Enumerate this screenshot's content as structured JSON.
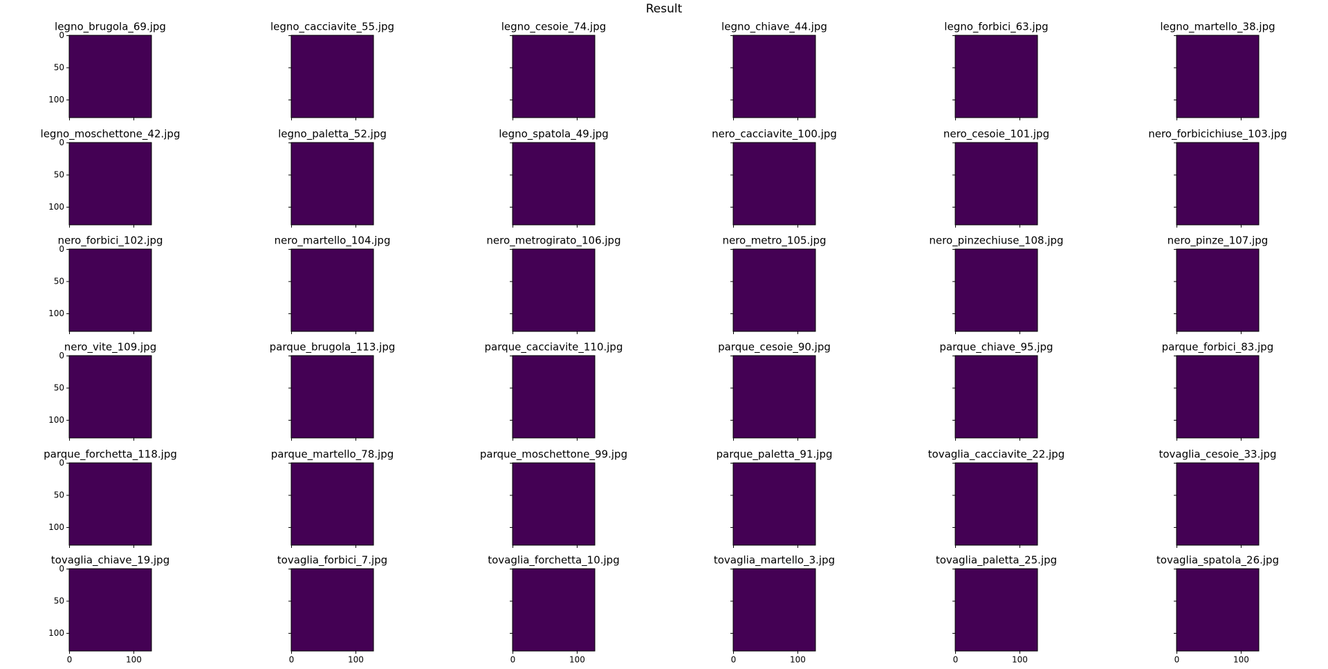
{
  "chart_data": {
    "type": "image",
    "title": "Result",
    "xlim": [
      -0.5,
      127.5
    ],
    "ylim": [
      127.5,
      -0.5
    ],
    "xticks": [
      0,
      100
    ],
    "yticks": [
      0,
      50,
      100
    ],
    "color": "#440154",
    "panels": [
      {
        "title": "legno_brugola_69.jpg"
      },
      {
        "title": "legno_cacciavite_55.jpg"
      },
      {
        "title": "legno_cesoie_74.jpg"
      },
      {
        "title": "legno_chiave_44.jpg"
      },
      {
        "title": "legno_forbici_63.jpg"
      },
      {
        "title": "legno_martello_38.jpg"
      },
      {
        "title": "legno_moschettone_42.jpg"
      },
      {
        "title": "legno_paletta_52.jpg"
      },
      {
        "title": "legno_spatola_49.jpg"
      },
      {
        "title": "nero_cacciavite_100.jpg"
      },
      {
        "title": "nero_cesoie_101.jpg"
      },
      {
        "title": "nero_forbicichiuse_103.jpg"
      },
      {
        "title": "nero_forbici_102.jpg"
      },
      {
        "title": "nero_martello_104.jpg"
      },
      {
        "title": "nero_metrogirato_106.jpg"
      },
      {
        "title": "nero_metro_105.jpg"
      },
      {
        "title": "nero_pinzechiuse_108.jpg"
      },
      {
        "title": "nero_pinze_107.jpg"
      },
      {
        "title": "nero_vite_109.jpg"
      },
      {
        "title": "parque_brugola_113.jpg"
      },
      {
        "title": "parque_cacciavite_110.jpg"
      },
      {
        "title": "parque_cesoie_90.jpg"
      },
      {
        "title": "parque_chiave_95.jpg"
      },
      {
        "title": "parque_forbici_83.jpg"
      },
      {
        "title": "parque_forchetta_118.jpg"
      },
      {
        "title": "parque_martello_78.jpg"
      },
      {
        "title": "parque_moschettone_99.jpg"
      },
      {
        "title": "parque_paletta_91.jpg"
      },
      {
        "title": "tovaglia_cacciavite_22.jpg"
      },
      {
        "title": "tovaglia_cesoie_33.jpg"
      },
      {
        "title": "tovaglia_chiave_19.jpg"
      },
      {
        "title": "tovaglia_forbici_7.jpg"
      },
      {
        "title": "tovaglia_forchetta_10.jpg"
      },
      {
        "title": "tovaglia_martello_3.jpg"
      },
      {
        "title": "tovaglia_paletta_25.jpg"
      },
      {
        "title": "tovaglia_spatola_26.jpg"
      }
    ]
  }
}
